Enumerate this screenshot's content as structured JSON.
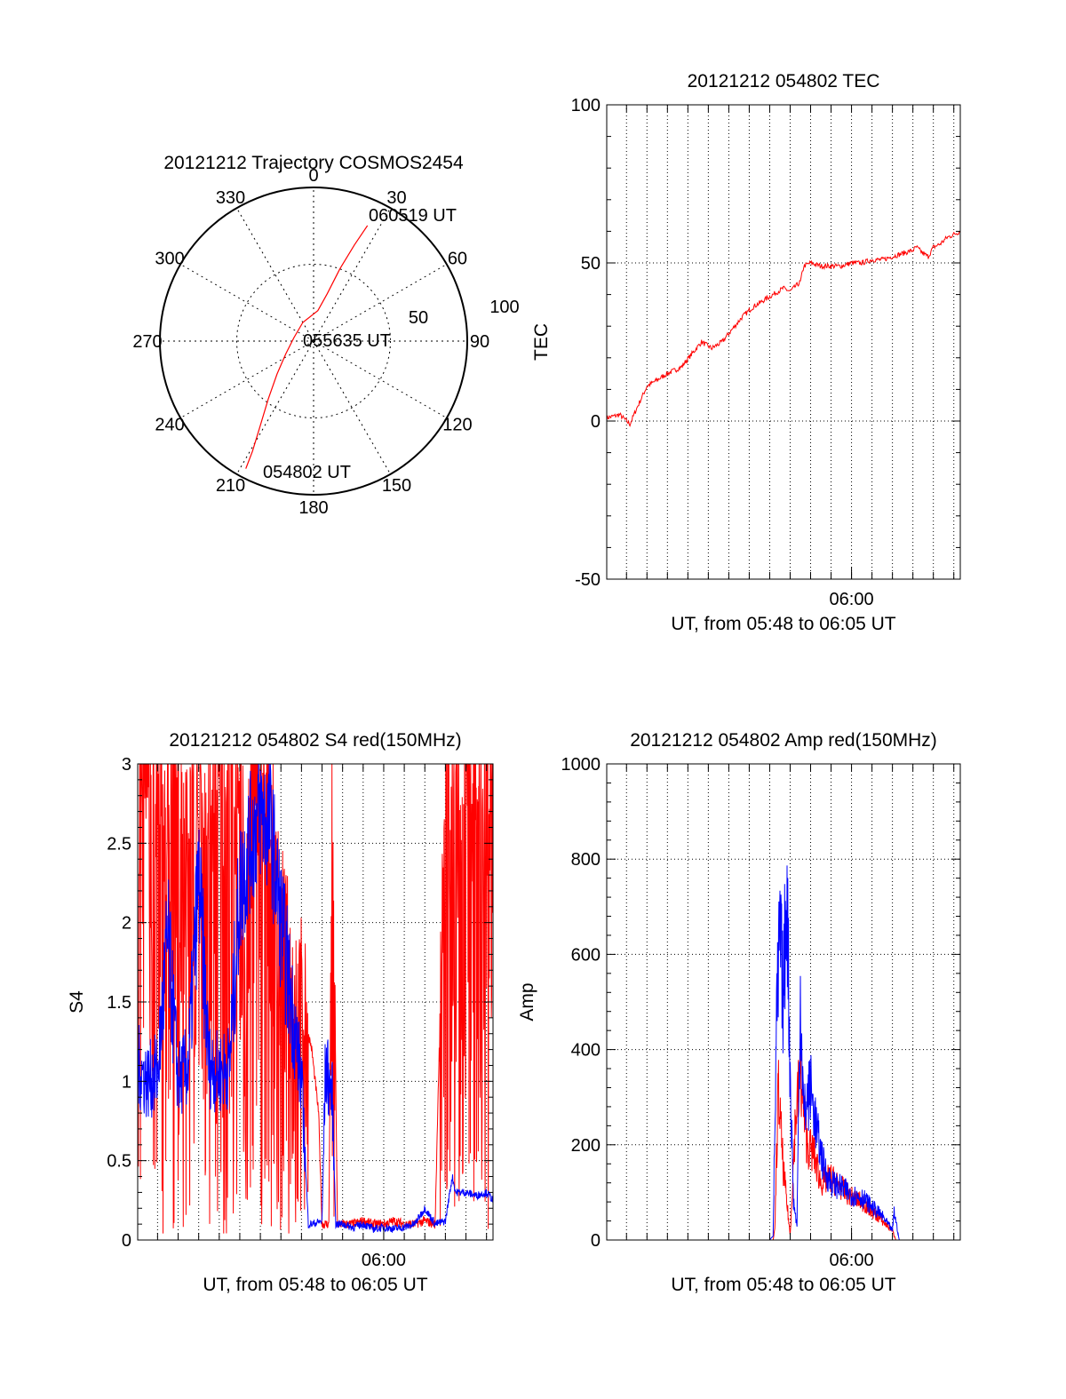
{
  "chart_data": [
    {
      "id": "trajectory",
      "type": "polar",
      "title": "20121212 Trajectory COSMOS2454",
      "angle_labels": [
        "0",
        "30",
        "60",
        "90",
        "120",
        "150",
        "180",
        "210",
        "240",
        "270",
        "300",
        "330"
      ],
      "radial_labels": [
        "50",
        "100"
      ],
      "rlim": [
        0,
        100
      ],
      "grid": true,
      "series": [
        {
          "color": "#ff0000",
          "points": [
            {
              "az": 208,
              "el": 6
            },
            {
              "az": 209,
              "el": 18
            },
            {
              "az": 212,
              "el": 34
            },
            {
              "az": 218,
              "el": 52
            },
            {
              "az": 228,
              "el": 68
            },
            {
              "az": 245,
              "el": 80
            },
            {
              "az": 280,
              "el": 87
            },
            {
              "az": 330,
              "el": 86
            },
            {
              "az": 8,
              "el": 80
            },
            {
              "az": 16,
              "el": 68
            },
            {
              "az": 20,
              "el": 50
            },
            {
              "az": 23,
              "el": 32
            },
            {
              "az": 25,
              "el": 17
            }
          ]
        }
      ],
      "annotations": [
        "060519 UT",
        "055635 UT",
        "054802 UT"
      ]
    },
    {
      "id": "tec",
      "type": "line",
      "title": "20121212 054802 TEC",
      "xlabel": "UT, from 05:48 to 06:05 UT",
      "ylabel": "TEC",
      "xlim": [
        "05:48:02",
        "06:05:19"
      ],
      "ylim": [
        -50,
        100
      ],
      "yticks": [
        "-50",
        "0",
        "50",
        "100"
      ],
      "xticks": [
        {
          "t": "06:00:00",
          "label": "06:00"
        }
      ],
      "grid": true,
      "series": [
        {
          "color": "#ff0000",
          "x": [
            "05:48:02",
            "05:48:40",
            "05:49:10",
            "05:49:30",
            "05:50:00",
            "05:50:30",
            "05:51:00",
            "05:51:40",
            "05:52:10",
            "05:52:40",
            "05:53:10",
            "05:53:40",
            "05:54:10",
            "05:54:40",
            "05:55:10",
            "05:55:40",
            "05:56:10",
            "05:56:40",
            "05:57:00",
            "05:57:20",
            "05:57:30",
            "05:57:40",
            "05:58:00",
            "05:58:30",
            "05:59:00",
            "05:59:30",
            "06:00:00",
            "06:00:30",
            "06:01:00",
            "06:01:30",
            "06:02:00",
            "06:02:30",
            "06:03:00",
            "06:03:10",
            "06:03:30",
            "06:03:45",
            "06:04:00",
            "06:04:20",
            "06:04:40",
            "06:05:00",
            "06:05:19"
          ],
          "y": [
            1,
            2,
            -1,
            4,
            11,
            13,
            15,
            17,
            21,
            25,
            23,
            25,
            29,
            33,
            36,
            38,
            40,
            42,
            41,
            43,
            44,
            49,
            50,
            49,
            49,
            49,
            50,
            50,
            51,
            51,
            52,
            53,
            54,
            55,
            53,
            52,
            55,
            56,
            58,
            59,
            60
          ]
        }
      ]
    },
    {
      "id": "s4",
      "type": "line",
      "title": "20121212 054802 S4 red(150MHz)",
      "xlabel": "UT, from 05:48 to 06:05 UT",
      "ylabel": "S4",
      "xlim": [
        "05:48:02",
        "06:05:19"
      ],
      "ylim": [
        0,
        3
      ],
      "yticks": [
        "0",
        "0.5",
        "1",
        "1.5",
        "2",
        "2.5",
        "3"
      ],
      "xticks": [
        {
          "t": "06:00:00",
          "label": "06:00"
        }
      ],
      "grid": true,
      "series": [
        {
          "color": "#ff0000",
          "x": [
            "05:48:02",
            "05:49:00",
            "05:50:00",
            "05:51:00",
            "05:52:00",
            "05:53:00",
            "05:54:00",
            "05:54:30",
            "05:55:00",
            "05:55:30",
            "05:56:00",
            "05:56:30",
            "05:56:50",
            "05:57:00",
            "05:57:20",
            "05:57:30",
            "05:57:45",
            "05:58:00",
            "05:58:30",
            "05:59:00",
            "05:59:30",
            "06:00:00",
            "06:00:30",
            "06:01:00",
            "06:01:30",
            "06:02:00",
            "06:02:30",
            "06:03:00",
            "06:03:30",
            "06:04:00",
            "06:04:30",
            "06:05:00",
            "06:05:19"
          ],
          "y": [
            2.9,
            2.8,
            2.7,
            2.6,
            2.9,
            2.8,
            2.8,
            2.6,
            2.0,
            1.6,
            1.5,
            1.2,
            0.8,
            0.1,
            0.1,
            2.8,
            0.1,
            0.1,
            0.1,
            0.12,
            0.1,
            0.1,
            0.12,
            0.1,
            0.1,
            0.12,
            0.1,
            2.9,
            2.9,
            2.8,
            2.9,
            2.8,
            2.9
          ]
        },
        {
          "color": "#0000ff",
          "x": [
            "05:48:02",
            "05:48:30",
            "05:49:00",
            "05:49:30",
            "05:50:00",
            "05:50:30",
            "05:51:00",
            "05:51:30",
            "05:52:00",
            "05:52:30",
            "05:53:00",
            "05:53:30",
            "05:54:00",
            "05:54:30",
            "05:55:00",
            "05:55:30",
            "05:56:00",
            "05:56:20",
            "05:56:30",
            "05:57:00",
            "05:57:10",
            "05:57:30",
            "05:57:40",
            "05:58:00",
            "05:58:30",
            "05:59:00",
            "05:59:30",
            "06:00:00",
            "06:00:30",
            "06:01:00",
            "06:01:30",
            "06:02:00",
            "06:02:30",
            "06:03:00",
            "06:03:20",
            "06:03:30",
            "06:04:00",
            "06:04:30",
            "06:05:00",
            "06:05:19"
          ],
          "y": [
            1.1,
            1.0,
            1.05,
            1.9,
            1.0,
            1.1,
            2.3,
            1.1,
            1.05,
            1.1,
            2.2,
            2.5,
            2.7,
            2.6,
            2.0,
            1.5,
            1.0,
            0.1,
            0.1,
            0.12,
            1.1,
            0.9,
            0.1,
            0.1,
            0.08,
            0.1,
            0.07,
            0.08,
            0.07,
            0.08,
            0.1,
            0.2,
            0.1,
            0.12,
            0.4,
            0.3,
            0.3,
            0.28,
            0.3,
            0.25
          ]
        }
      ]
    },
    {
      "id": "amp",
      "type": "line",
      "title": "20121212 054802 Amp red(150MHz)",
      "xlabel": "UT, from 05:48 to 06:05 UT",
      "ylabel": "Amp",
      "xlim": [
        "05:48:02",
        "06:05:19"
      ],
      "ylim": [
        0,
        1000
      ],
      "yticks": [
        "0",
        "200",
        "400",
        "600",
        "800",
        "1000"
      ],
      "xticks": [
        {
          "t": "06:00:00",
          "label": "06:00"
        }
      ],
      "grid": true,
      "series": [
        {
          "color": "#ff0000",
          "x": [
            "05:48:02",
            "05:55:00",
            "05:56:10",
            "05:56:15",
            "05:56:25",
            "05:56:40",
            "05:57:00",
            "05:57:15",
            "05:57:30",
            "05:57:50",
            "05:58:10",
            "05:58:30",
            "05:59:00",
            "05:59:30",
            "06:00:00",
            "06:00:30",
            "06:01:00",
            "06:01:30",
            "06:02:00",
            "06:02:10",
            "06:02:30",
            "06:05:19"
          ],
          "y": [
            0,
            0,
            0,
            20,
            320,
            150,
            10,
            250,
            350,
            200,
            180,
            120,
            130,
            110,
            90,
            80,
            60,
            40,
            20,
            0,
            0,
            0
          ]
        },
        {
          "color": "#0000ff",
          "x": [
            "05:48:02",
            "05:56:00",
            "05:56:10",
            "05:56:20",
            "05:56:30",
            "05:56:40",
            "05:56:50",
            "05:57:00",
            "05:57:10",
            "05:57:20",
            "05:57:30",
            "05:57:40",
            "05:58:00",
            "05:58:20",
            "05:58:40",
            "05:59:00",
            "05:59:30",
            "06:00:00",
            "06:00:30",
            "06:01:00",
            "06:01:30",
            "06:02:00",
            "06:02:05",
            "06:02:20",
            "06:05:19"
          ],
          "y": [
            0,
            0,
            10,
            450,
            640,
            500,
            760,
            350,
            80,
            30,
            520,
            260,
            320,
            220,
            150,
            120,
            110,
            95,
            90,
            70,
            50,
            20,
            60,
            0,
            0
          ]
        }
      ]
    }
  ]
}
